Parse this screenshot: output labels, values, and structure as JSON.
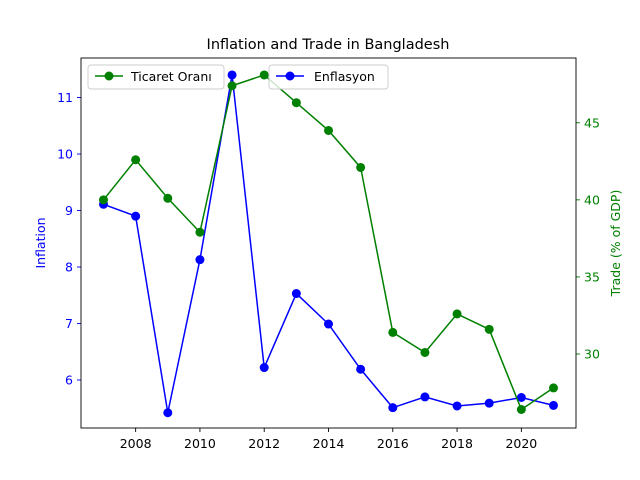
{
  "chart_data": {
    "type": "line",
    "title": "Inflation and Trade in Bangladesh",
    "x": [
      2007,
      2008,
      2009,
      2010,
      2011,
      2012,
      2013,
      2014,
      2015,
      2016,
      2017,
      2018,
      2019,
      2020,
      2021
    ],
    "xticks": [
      2008,
      2010,
      2012,
      2014,
      2016,
      2018,
      2020
    ],
    "xlim": [
      2006.3,
      2021.7
    ],
    "left_axis": {
      "label": "Inflation",
      "color": "#0000ff",
      "ylim": [
        5.15,
        11.7
      ],
      "ticks": [
        6,
        7,
        8,
        9,
        10,
        11
      ]
    },
    "right_axis": {
      "label": "Trade (% of GDP)",
      "color": "#008000",
      "ylim": [
        25.2,
        49.2
      ],
      "ticks": [
        30,
        35,
        40,
        45
      ]
    },
    "series": [
      {
        "name": "Enflasyon",
        "axis": "left",
        "color": "#0000ff",
        "values": [
          9.11,
          8.9,
          5.42,
          8.13,
          11.4,
          6.22,
          7.53,
          6.99,
          6.19,
          5.51,
          5.7,
          5.54,
          5.59,
          5.69,
          5.55
        ]
      },
      {
        "name": "Ticaret Oranı",
        "axis": "right",
        "color": "#008000",
        "values": [
          40.0,
          42.6,
          40.1,
          37.9,
          47.4,
          48.1,
          46.3,
          44.5,
          42.1,
          31.4,
          30.1,
          32.6,
          31.6,
          26.4,
          27.8
        ]
      }
    ],
    "legend_placement": "top-left",
    "grid": false
  }
}
